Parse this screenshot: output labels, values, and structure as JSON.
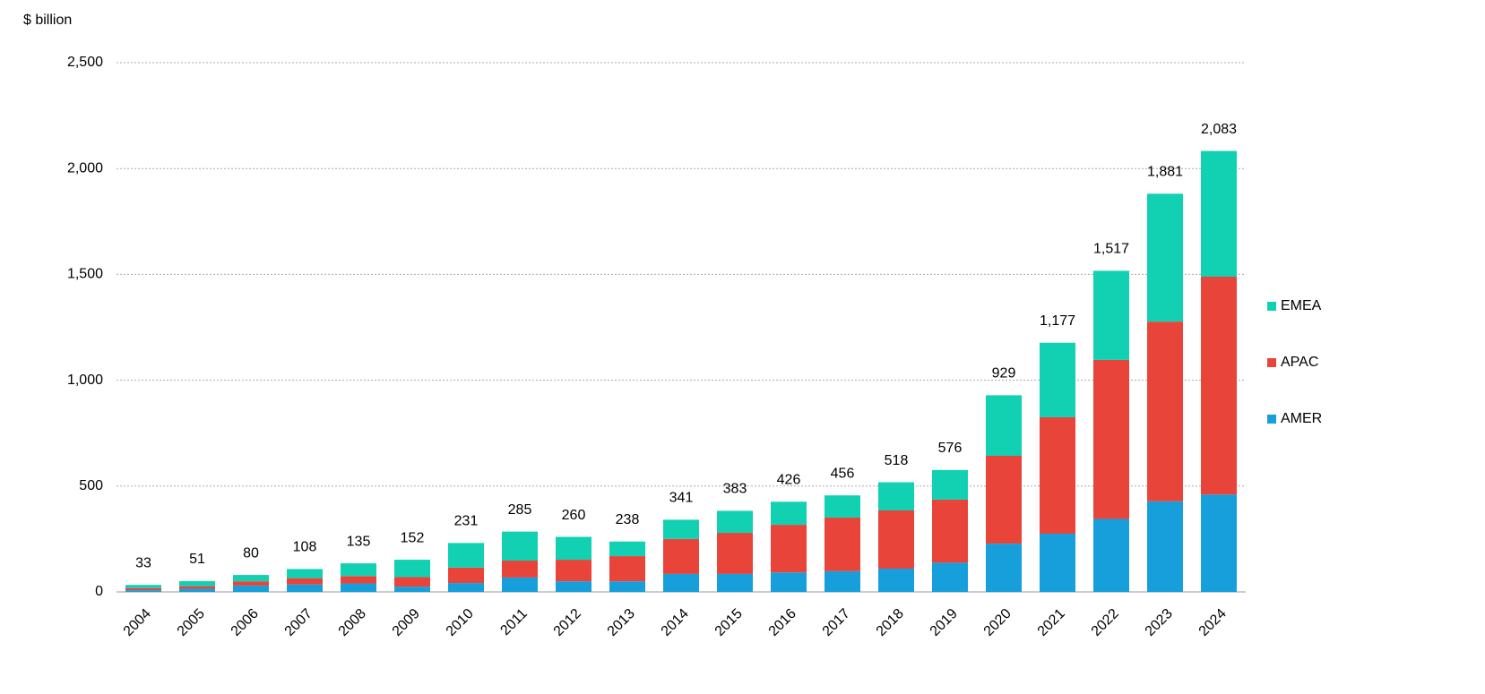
{
  "chart_data": {
    "type": "stacked_bar",
    "y_axis_label": "$ billion",
    "categories": [
      "2004",
      "2005",
      "2006",
      "2007",
      "2008",
      "2009",
      "2010",
      "2011",
      "2012",
      "2013",
      "2014",
      "2015",
      "2016",
      "2017",
      "2018",
      "2019",
      "2020",
      "2021",
      "2022",
      "2023",
      "2024"
    ],
    "series": [
      {
        "name": "AMER",
        "color": "#169fdb",
        "values": [
          8,
          15,
          30,
          35,
          40,
          25,
          42,
          68,
          50,
          50,
          85,
          85,
          92,
          98,
          110,
          138,
          228,
          275,
          345,
          428,
          460
        ]
      },
      {
        "name": "APAC",
        "color": "#e8443a",
        "values": [
          10,
          12,
          20,
          30,
          35,
          45,
          73,
          80,
          102,
          119,
          165,
          194,
          225,
          253,
          275,
          298,
          415,
          550,
          751,
          849,
          1029
        ]
      },
      {
        "name": "EMEA",
        "color": "#12d0b2",
        "values": [
          15,
          24,
          30,
          43,
          60,
          82,
          116,
          137,
          108,
          69,
          91,
          104,
          109,
          105,
          133,
          140,
          286,
          352,
          421,
          604,
          594
        ]
      }
    ],
    "totals": {
      "values": [
        33,
        51,
        80,
        108,
        135,
        152,
        231,
        285,
        260,
        238,
        341,
        383,
        426,
        456,
        518,
        576,
        929,
        1177,
        1517,
        1881,
        2083
      ],
      "value_labels": [
        "33",
        "51",
        "80",
        "108",
        "135",
        "152",
        "231",
        "285",
        "260",
        "238",
        "341",
        "383",
        "426",
        "456",
        "518",
        "576",
        "929",
        "1,177",
        "1,517",
        "1,881",
        "2,083"
      ]
    },
    "ylim": [
      0,
      2500
    ],
    "yticks": [
      0,
      500,
      {
        "value": 1000,
        "label": "1,000"
      },
      {
        "value": 1500,
        "label": "1,500"
      },
      {
        "value": 2000,
        "label": "2,000"
      },
      {
        "value": 2500,
        "label": "2,500"
      }
    ],
    "grid": true,
    "legend": "right"
  }
}
